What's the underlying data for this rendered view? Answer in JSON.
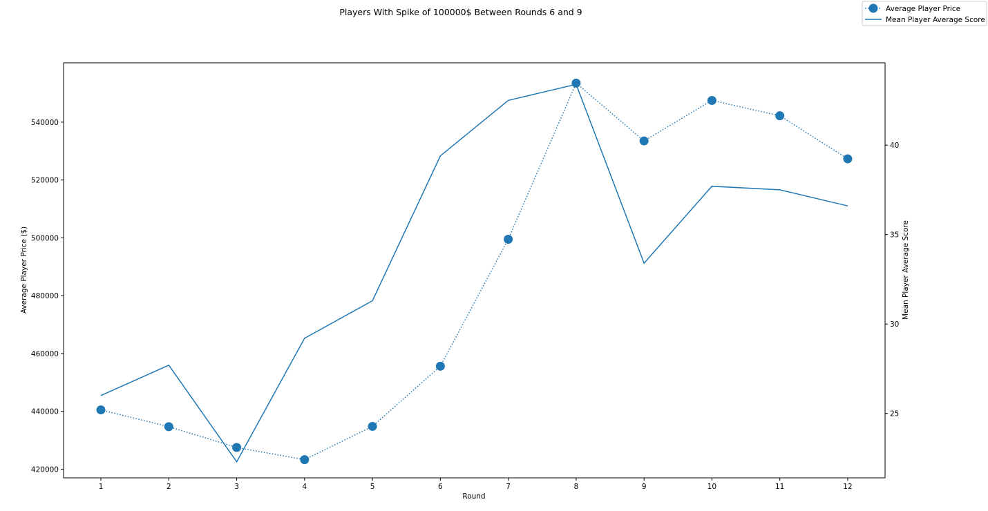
{
  "chart_data": {
    "type": "line",
    "title": "Players With Spike of 100000$ Between Rounds 6 and 9",
    "xlabel": "Round",
    "ylabel_left": "Average Player Price ($)",
    "ylabel_right": "Mean Player Average Score",
    "x": [
      1,
      2,
      3,
      4,
      5,
      6,
      7,
      8,
      9,
      10,
      11,
      12
    ],
    "x_ticks": [
      "1",
      "2",
      "3",
      "4",
      "5",
      "6",
      "7",
      "8",
      "9",
      "10",
      "11",
      "12"
    ],
    "xlim": [
      0.45,
      12.55
    ],
    "ylim_left": [
      417000,
      560500
    ],
    "ylim_right": [
      21.4,
      44.6
    ],
    "y_ticks_left": [
      420000,
      440000,
      460000,
      480000,
      500000,
      520000,
      540000
    ],
    "y_ticks_right": [
      25,
      30,
      35,
      40
    ],
    "grid": false,
    "legend_position": "top-right",
    "series": [
      {
        "name": "Average Player Price",
        "axis": "left",
        "style": "dotted-markers",
        "color": "#1f77b4",
        "values": [
          440500,
          434700,
          427500,
          423300,
          434800,
          455600,
          499500,
          553500,
          533500,
          547500,
          542200,
          527300
        ]
      },
      {
        "name": "Mean Player Average Score",
        "axis": "right",
        "style": "solid",
        "color": "#1f77b4",
        "values": [
          26.0,
          27.7,
          22.3,
          29.2,
          31.3,
          39.4,
          42.5,
          43.4,
          33.4,
          37.7,
          37.5,
          36.6
        ]
      }
    ]
  }
}
